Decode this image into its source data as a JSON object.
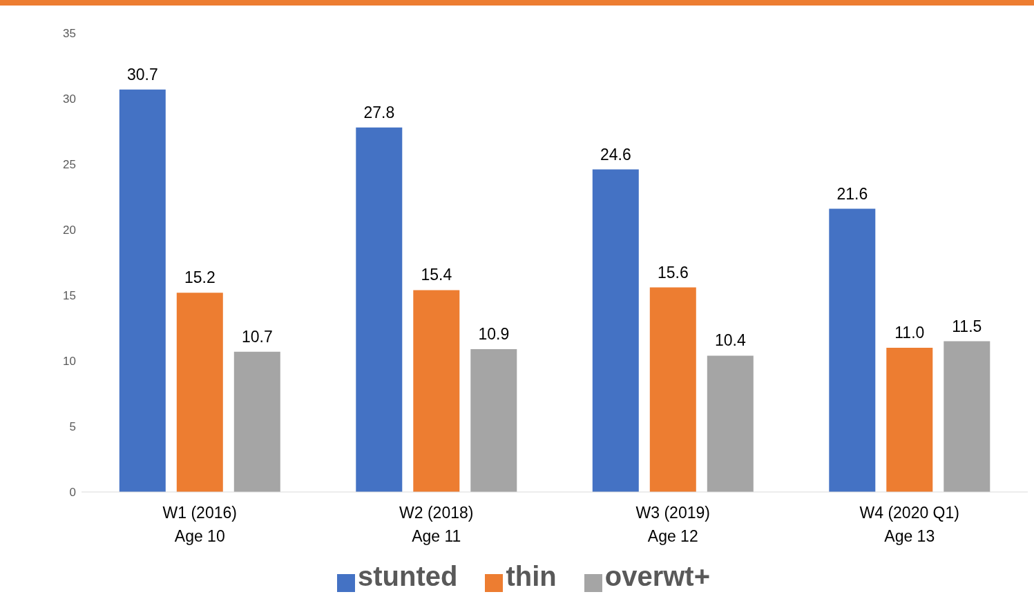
{
  "chart_data": {
    "type": "bar",
    "categories": [
      "W1 (2016)\nAge 10",
      "W2 (2018)\nAge 11",
      "W3 (2019)\nAge 12",
      "W4 (2020 Q1)\nAge 13"
    ],
    "series": [
      {
        "name": "stunted",
        "color": "#4472c4",
        "values": [
          30.7,
          27.8,
          24.6,
          21.6
        ]
      },
      {
        "name": "thin",
        "color": "#ed7d31",
        "values": [
          15.2,
          15.4,
          15.6,
          11.0
        ]
      },
      {
        "name": "overwt+",
        "color": "#a5a5a5",
        "values": [
          10.7,
          10.9,
          10.4,
          11.5
        ]
      }
    ],
    "value_labels": [
      [
        "30.7",
        "27.8",
        "24.6",
        "21.6"
      ],
      [
        "15.2",
        "15.4",
        "15.6",
        "11.0"
      ],
      [
        "10.7",
        "10.9",
        "10.4",
        "11.5"
      ]
    ],
    "ylim": [
      0,
      35
    ],
    "yticks": [
      0,
      5,
      10,
      15,
      20,
      25,
      30,
      35
    ],
    "grid": false,
    "legend": "bottom"
  }
}
